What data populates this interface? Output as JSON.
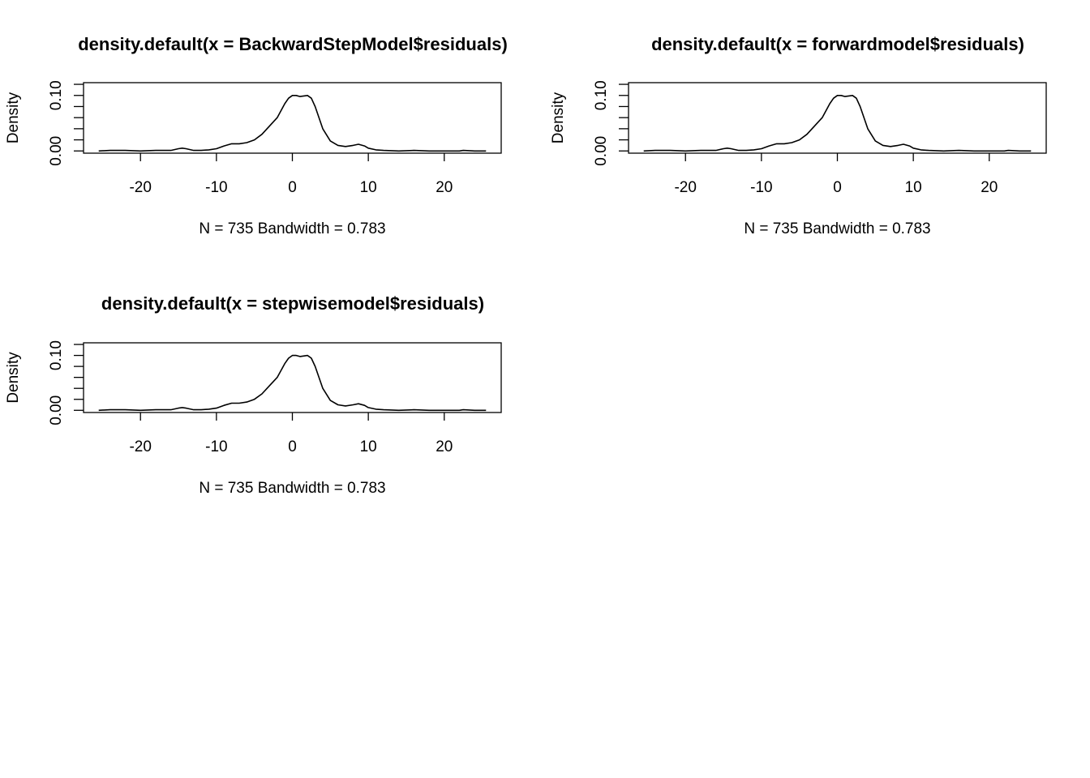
{
  "chart_data": [
    {
      "type": "line",
      "title": "density.default(x = BackwardStepModel$residuals)",
      "xlabel": "N = 735   Bandwidth = 0.783",
      "ylabel": "Density",
      "xlim": [
        -27.5,
        27.5
      ],
      "ylim": [
        -0.004,
        0.123
      ],
      "x_ticks": [
        -20,
        -10,
        0,
        10,
        20
      ],
      "x_tick_labels": [
        "-20",
        "-10",
        "0",
        "10",
        "20"
      ],
      "y_tick_labels": [
        "0.00",
        "0.10"
      ],
      "y_tick_labels_at": [
        0.0,
        0.1
      ],
      "y_minor_ticks": [
        0.0,
        0.02,
        0.04,
        0.06,
        0.08,
        0.1,
        0.12
      ],
      "series": [
        {
          "x": [
            -25.5,
            -24,
            -22,
            -20,
            -18,
            -16,
            -15,
            -14.5,
            -14,
            -13,
            -12,
            -11,
            -10,
            -9,
            -8,
            -7,
            -6,
            -5,
            -4,
            -3,
            -2,
            -1,
            -0.5,
            0,
            0.5,
            1,
            2,
            2.5,
            3,
            4,
            5,
            6,
            7,
            8,
            8.7,
            9.5,
            10,
            11,
            12,
            14,
            16,
            18,
            20,
            22,
            22.5,
            24,
            25.5
          ],
          "y": [
            0.0,
            0.001,
            0.001,
            0.0,
            0.001,
            0.001,
            0.004,
            0.005,
            0.004,
            0.001,
            0.001,
            0.002,
            0.004,
            0.009,
            0.013,
            0.013,
            0.015,
            0.02,
            0.03,
            0.045,
            0.06,
            0.085,
            0.095,
            0.1,
            0.1,
            0.098,
            0.1,
            0.095,
            0.08,
            0.04,
            0.018,
            0.01,
            0.008,
            0.01,
            0.012,
            0.009,
            0.005,
            0.002,
            0.001,
            0.0,
            0.001,
            0.0,
            0.0,
            0.0,
            0.001,
            0.0,
            0.0
          ]
        }
      ]
    },
    {
      "type": "line",
      "title": "density.default(x = forwardmodel$residuals)",
      "xlabel": "N = 735   Bandwidth = 0.783",
      "ylabel": "Density",
      "xlim": [
        -27.5,
        27.5
      ],
      "ylim": [
        -0.004,
        0.123
      ],
      "x_ticks": [
        -20,
        -10,
        0,
        10,
        20
      ],
      "x_tick_labels": [
        "-20",
        "-10",
        "0",
        "10",
        "20"
      ],
      "y_tick_labels": [
        "0.00",
        "0.10"
      ],
      "y_tick_labels_at": [
        0.0,
        0.1
      ],
      "y_minor_ticks": [
        0.0,
        0.02,
        0.04,
        0.06,
        0.08,
        0.1,
        0.12
      ],
      "series": [
        {
          "x": [
            -25.5,
            -24,
            -22,
            -20,
            -18,
            -16,
            -15,
            -14.5,
            -14,
            -13,
            -12,
            -11,
            -10,
            -9,
            -8,
            -7,
            -6,
            -5,
            -4,
            -3,
            -2,
            -1,
            -0.5,
            0,
            0.5,
            1,
            2,
            2.5,
            3,
            4,
            5,
            6,
            7,
            8,
            8.7,
            9.5,
            10,
            11,
            12,
            14,
            16,
            18,
            20,
            22,
            22.5,
            24,
            25.5
          ],
          "y": [
            0.0,
            0.001,
            0.001,
            0.0,
            0.001,
            0.001,
            0.004,
            0.005,
            0.004,
            0.001,
            0.001,
            0.002,
            0.004,
            0.009,
            0.013,
            0.013,
            0.015,
            0.02,
            0.03,
            0.045,
            0.06,
            0.085,
            0.095,
            0.1,
            0.1,
            0.098,
            0.1,
            0.095,
            0.08,
            0.04,
            0.018,
            0.01,
            0.008,
            0.01,
            0.012,
            0.009,
            0.005,
            0.002,
            0.001,
            0.0,
            0.001,
            0.0,
            0.0,
            0.0,
            0.001,
            0.0,
            0.0
          ]
        }
      ]
    },
    {
      "type": "line",
      "title": "density.default(x = stepwisemodel$residuals)",
      "xlabel": "N = 735   Bandwidth = 0.783",
      "ylabel": "Density",
      "xlim": [
        -27.5,
        27.5
      ],
      "ylim": [
        -0.004,
        0.123
      ],
      "x_ticks": [
        -20,
        -10,
        0,
        10,
        20
      ],
      "x_tick_labels": [
        "-20",
        "-10",
        "0",
        "10",
        "20"
      ],
      "y_tick_labels": [
        "0.00",
        "0.10"
      ],
      "y_tick_labels_at": [
        0.0,
        0.1
      ],
      "y_minor_ticks": [
        0.0,
        0.02,
        0.04,
        0.06,
        0.08,
        0.1,
        0.12
      ],
      "series": [
        {
          "x": [
            -25.5,
            -24,
            -22,
            -20,
            -18,
            -16,
            -15,
            -14.5,
            -14,
            -13,
            -12,
            -11,
            -10,
            -9,
            -8,
            -7,
            -6,
            -5,
            -4,
            -3,
            -2,
            -1,
            -0.5,
            0,
            0.5,
            1,
            2,
            2.5,
            3,
            4,
            5,
            6,
            7,
            8,
            8.7,
            9.5,
            10,
            11,
            12,
            14,
            16,
            18,
            20,
            22,
            22.5,
            24,
            25.5
          ],
          "y": [
            0.0,
            0.001,
            0.001,
            0.0,
            0.001,
            0.001,
            0.004,
            0.005,
            0.004,
            0.001,
            0.001,
            0.002,
            0.004,
            0.009,
            0.013,
            0.013,
            0.015,
            0.02,
            0.03,
            0.045,
            0.06,
            0.085,
            0.095,
            0.1,
            0.1,
            0.098,
            0.1,
            0.095,
            0.08,
            0.04,
            0.018,
            0.01,
            0.008,
            0.01,
            0.012,
            0.009,
            0.005,
            0.002,
            0.001,
            0.0,
            0.001,
            0.0,
            0.0,
            0.0,
            0.001,
            0.0,
            0.0
          ]
        }
      ]
    }
  ]
}
